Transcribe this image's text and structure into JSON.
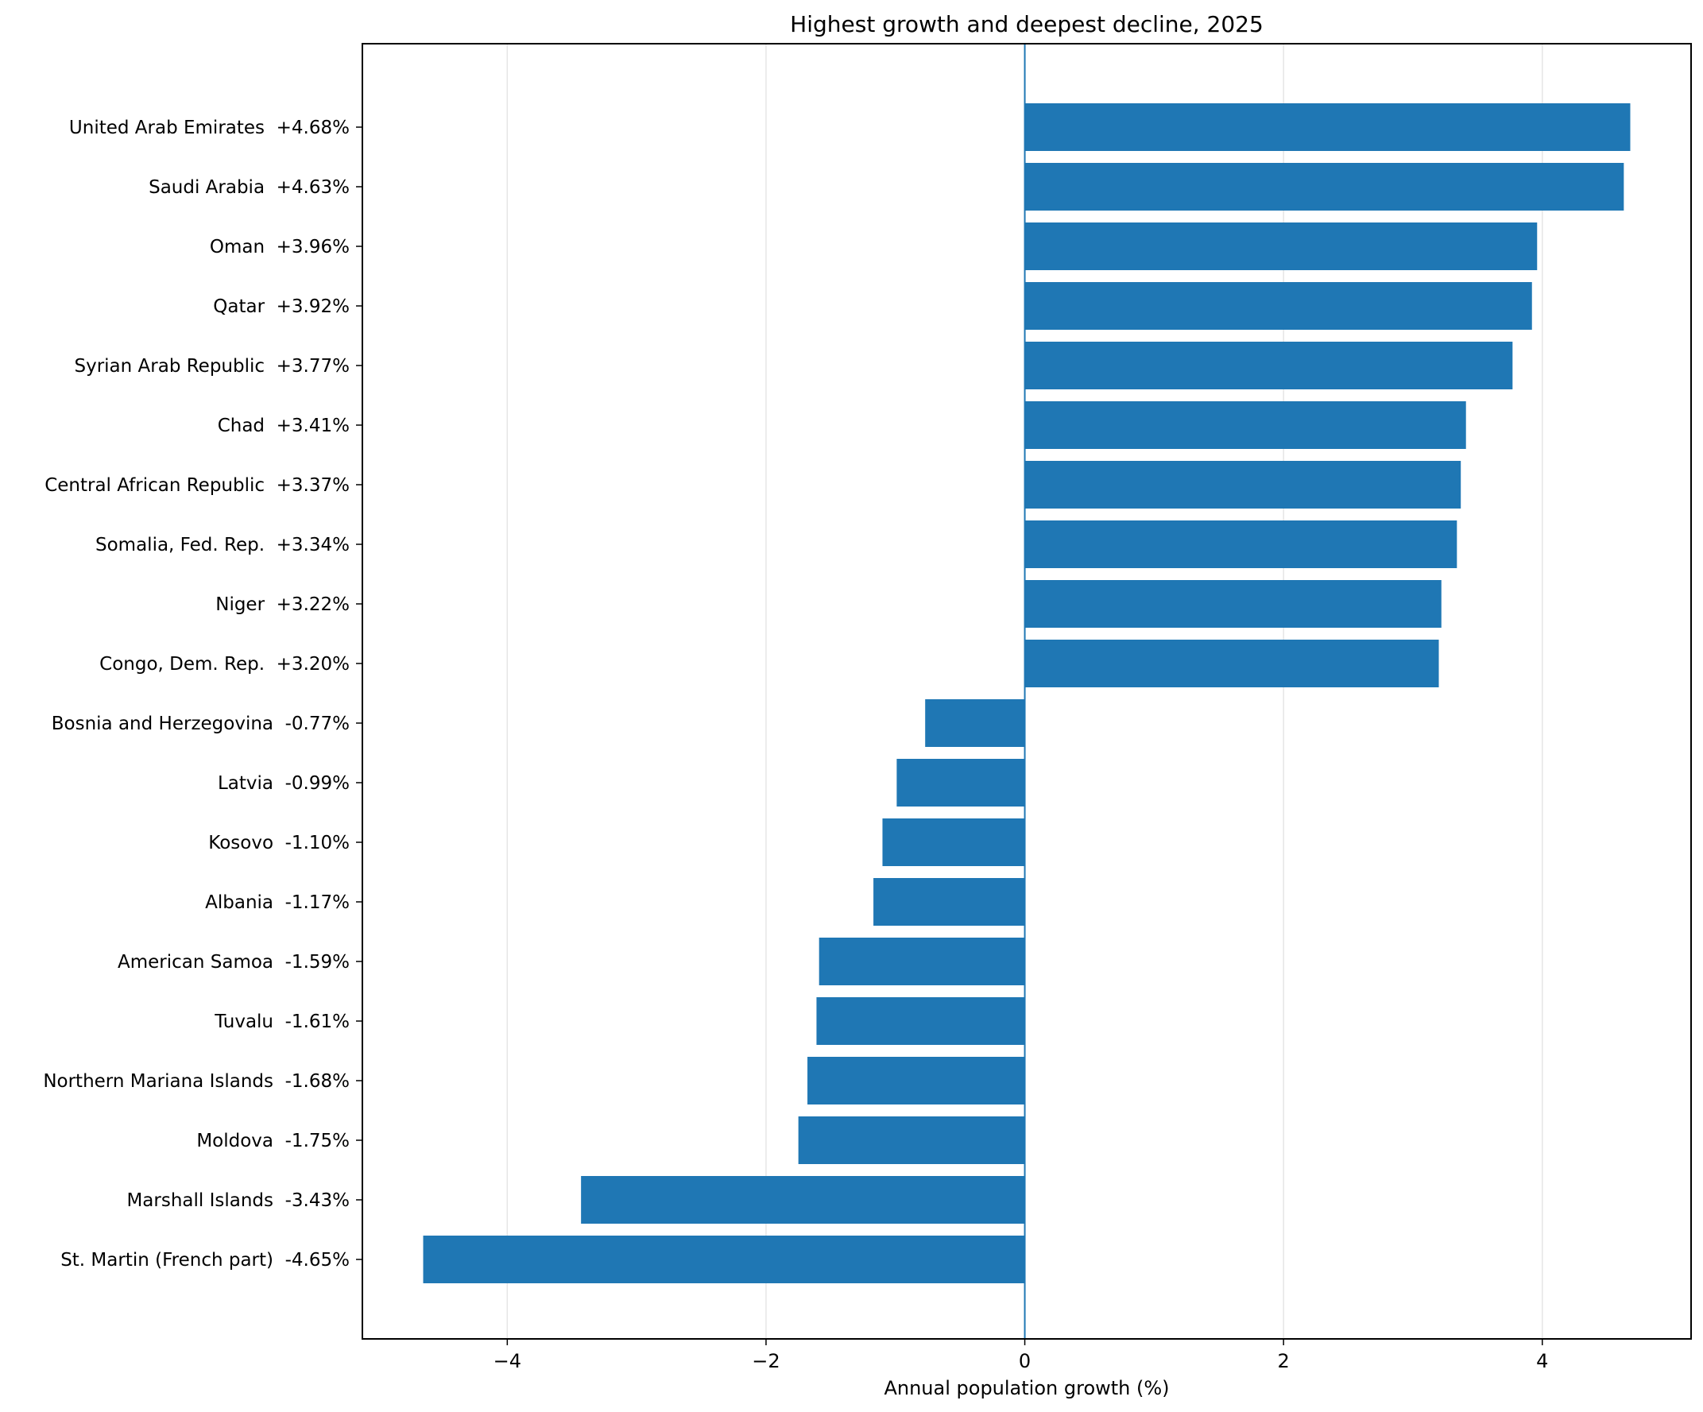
{
  "chart_data": {
    "type": "bar",
    "orientation": "horizontal",
    "title": "Highest growth and deepest decline, 2025",
    "xlabel": "Annual population growth (%)",
    "ylabel": "",
    "xlim": [
      -5.12,
      5.15
    ],
    "xticks": [
      -4,
      -2,
      0,
      2,
      4
    ],
    "xtick_labels": [
      "−4",
      "−2",
      "0",
      "2",
      "4"
    ],
    "grid": "vertical",
    "bar_color": "#1f77b4",
    "zero_line_color": "#1f77b4",
    "categories": [
      "United Arab Emirates  +4.68%",
      "Saudi Arabia  +4.63%",
      "Oman  +3.96%",
      "Qatar  +3.92%",
      "Syrian Arab Republic  +3.77%",
      "Chad  +3.41%",
      "Central African Republic  +3.37%",
      "Somalia, Fed. Rep.  +3.34%",
      "Niger  +3.22%",
      "Congo, Dem. Rep.  +3.20%",
      "Bosnia and Herzegovina  -0.77%",
      "Latvia  -0.99%",
      "Kosovo  -1.10%",
      "Albania  -1.17%",
      "American Samoa  -1.59%",
      "Tuvalu  -1.61%",
      "Northern Mariana Islands  -1.68%",
      "Moldova  -1.75%",
      "Marshall Islands  -3.43%",
      "St. Martin (French part)  -4.65%"
    ],
    "values": [
      4.68,
      4.63,
      3.96,
      3.92,
      3.77,
      3.41,
      3.37,
      3.34,
      3.22,
      3.2,
      -0.77,
      -0.99,
      -1.1,
      -1.17,
      -1.59,
      -1.61,
      -1.68,
      -1.75,
      -3.43,
      -4.65
    ]
  }
}
